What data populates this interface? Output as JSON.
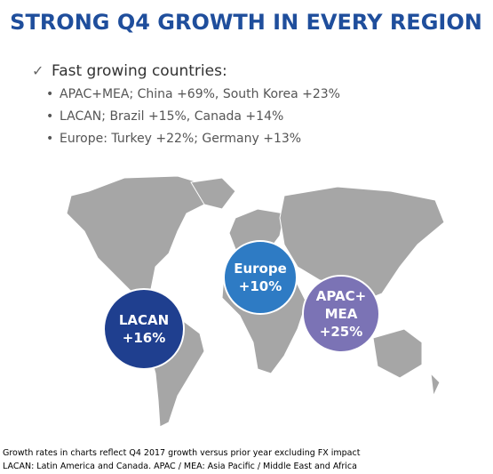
{
  "title": "STRONG Q4 GROWTH IN EVERY REGION",
  "heading": "Fast growing countries:",
  "bullets": [
    "APAC+MEA;  China +69%, South Korea +23%",
    "LACAN; Brazil +15%, Canada +14%",
    "Europe: Turkey +22%; Germany +13%"
  ],
  "regions": [
    {
      "lines": [
        "LACAN",
        "+16%"
      ]
    },
    {
      "lines": [
        "Europe",
        "+10%"
      ]
    },
    {
      "lines": [
        "APAC+",
        "MEA",
        "+25%"
      ]
    }
  ],
  "footnotes": [
    "Growth rates in charts reflect Q4 2017 growth versus prior year excluding FX impact",
    "LACAN: Latin America and Canada.  APAC / MEA: Asia Pacific / Middle East and Africa"
  ]
}
